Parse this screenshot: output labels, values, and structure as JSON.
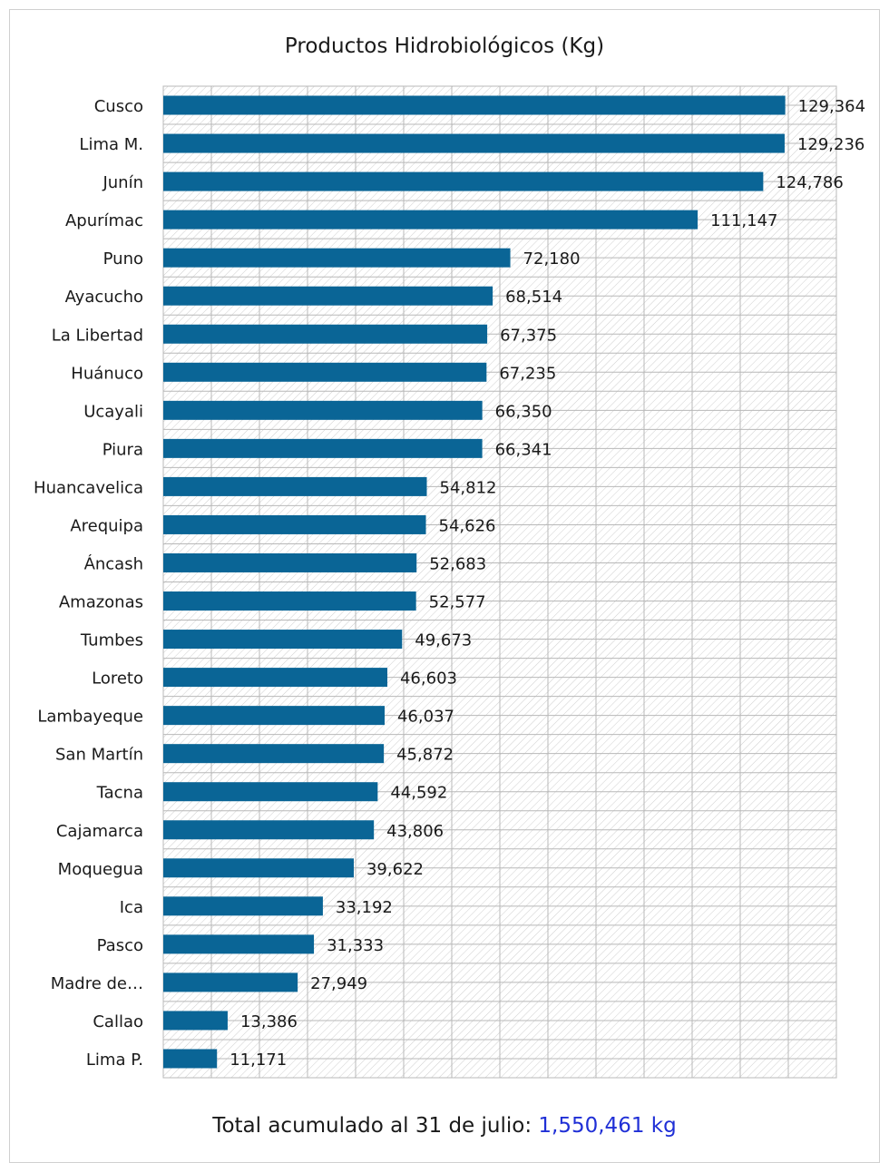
{
  "chart_data": {
    "type": "bar",
    "orientation": "horizontal",
    "title": "Productos Hidrobiológicos (Kg)",
    "xlim": [
      0,
      140000
    ],
    "grid": true,
    "bar_color": "#0a6596",
    "categories": [
      "Cusco",
      "Lima M.",
      "Junín",
      "Apurímac",
      "Puno",
      "Ayacucho",
      "La Libertad",
      "Huánuco",
      "Ucayali",
      "Piura",
      "Huancavelica",
      "Arequipa",
      "Áncash",
      "Amazonas",
      "Tumbes",
      "Loreto",
      "Lambayeque",
      "San Martín",
      "Tacna",
      "Cajamarca",
      "Moquegua",
      "Ica",
      "Pasco",
      "Madre de…",
      "Callao",
      "Lima P."
    ],
    "values": [
      129364,
      129236,
      124786,
      111147,
      72180,
      68514,
      67375,
      67235,
      66350,
      66341,
      54812,
      54626,
      52683,
      52577,
      49673,
      46603,
      46037,
      45872,
      44592,
      43806,
      39622,
      33192,
      31333,
      27949,
      13386,
      11171
    ],
    "value_labels": [
      "129,364",
      "129,236",
      "124,786",
      "111,147",
      "72,180",
      "68,514",
      "67,375",
      "67,235",
      "66,350",
      "66,341",
      "54,812",
      "54,626",
      "52,683",
      "52,577",
      "49,673",
      "46,603",
      "46,037",
      "45,872",
      "44,592",
      "43,806",
      "39,622",
      "33,192",
      "31,333",
      "27,949",
      "13,386",
      "11,171"
    ]
  },
  "footer": {
    "label": "Total acumulado al 31 de julio: ",
    "total": "1,550,461 kg",
    "total_color": "#1f2fd6"
  }
}
